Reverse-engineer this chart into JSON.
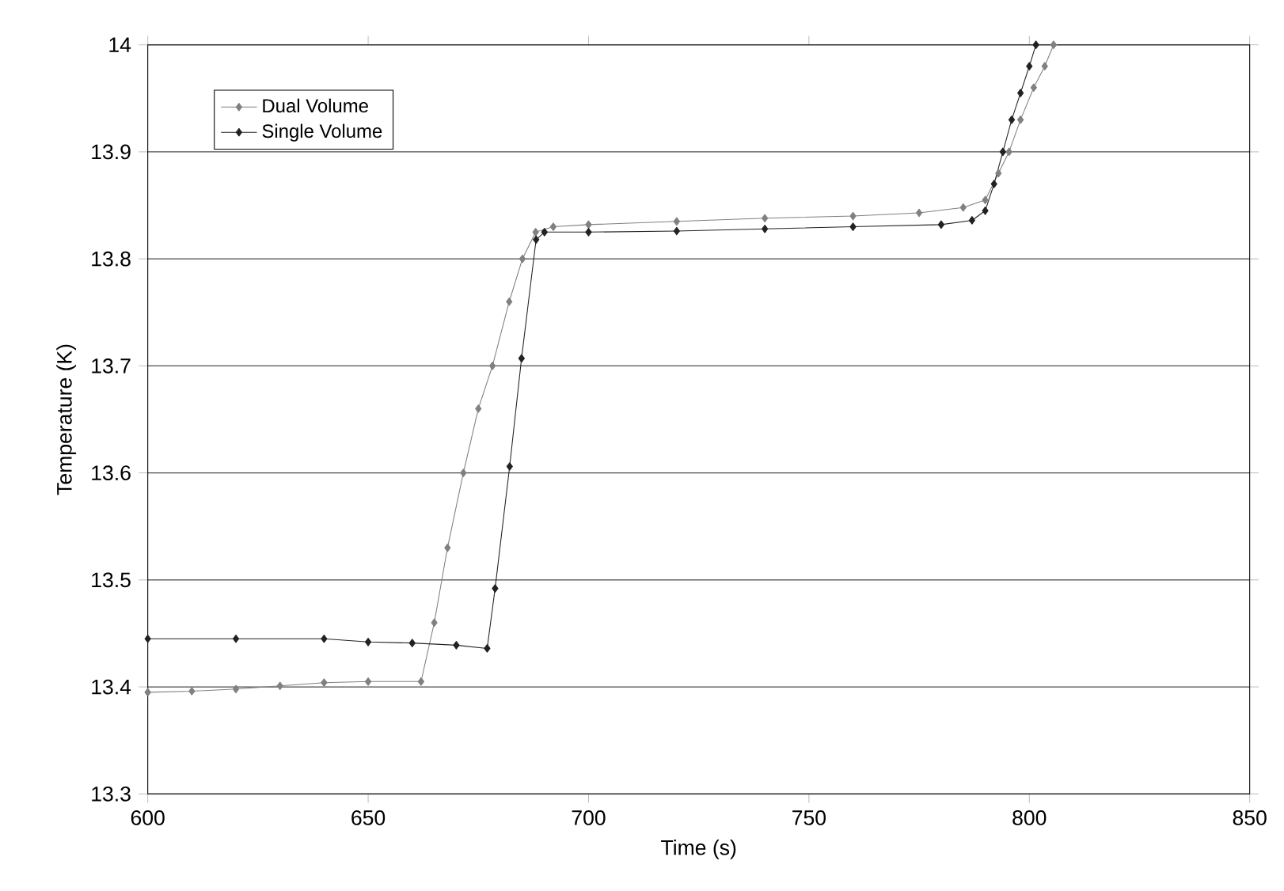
{
  "chart_data": {
    "type": "line",
    "xlabel": "Time (s)",
    "ylabel": "Temperature (K)",
    "xlim": [
      600,
      850
    ],
    "xticks": [
      600,
      650,
      700,
      750,
      800,
      850
    ],
    "ylim": [
      13.3,
      14
    ],
    "yticks": [
      13.3,
      13.4,
      13.5,
      13.6,
      13.7,
      13.8,
      13.9,
      14
    ],
    "grid": "y",
    "legend": "top left",
    "marker": "diamond",
    "line_style": "solid",
    "series": [
      {
        "name": "Dual Volume",
        "color": "#808080",
        "x": [
          600,
          610,
          620,
          630,
          640,
          650,
          662,
          665,
          668,
          671.6,
          675,
          678.2,
          682,
          685,
          688,
          692,
          700,
          720,
          740,
          760,
          775,
          785,
          790,
          793,
          795.4,
          798,
          801,
          803.5,
          805.5
        ],
        "values": [
          13.395,
          13.396,
          13.398,
          13.401,
          13.404,
          13.405,
          13.405,
          13.46,
          13.53,
          13.6,
          13.66,
          13.7,
          13.76,
          13.8,
          13.825,
          13.83,
          13.832,
          13.835,
          13.838,
          13.84,
          13.843,
          13.848,
          13.855,
          13.88,
          13.9,
          13.93,
          13.96,
          13.98,
          14.0
        ]
      },
      {
        "name": "Single Volume",
        "color": "#222222",
        "x": [
          600,
          620,
          640,
          650,
          660,
          670,
          677,
          678.8,
          682.1,
          684.8,
          688.1,
          690,
          700,
          720,
          740,
          760,
          780,
          787,
          790,
          792,
          794,
          796,
          798,
          800,
          801.5
        ],
        "values": [
          13.445,
          13.445,
          13.445,
          13.442,
          13.441,
          13.439,
          13.436,
          13.492,
          13.606,
          13.707,
          13.818,
          13.825,
          13.825,
          13.826,
          13.828,
          13.83,
          13.832,
          13.836,
          13.845,
          13.87,
          13.9,
          13.93,
          13.955,
          13.98,
          14.0
        ]
      }
    ]
  }
}
